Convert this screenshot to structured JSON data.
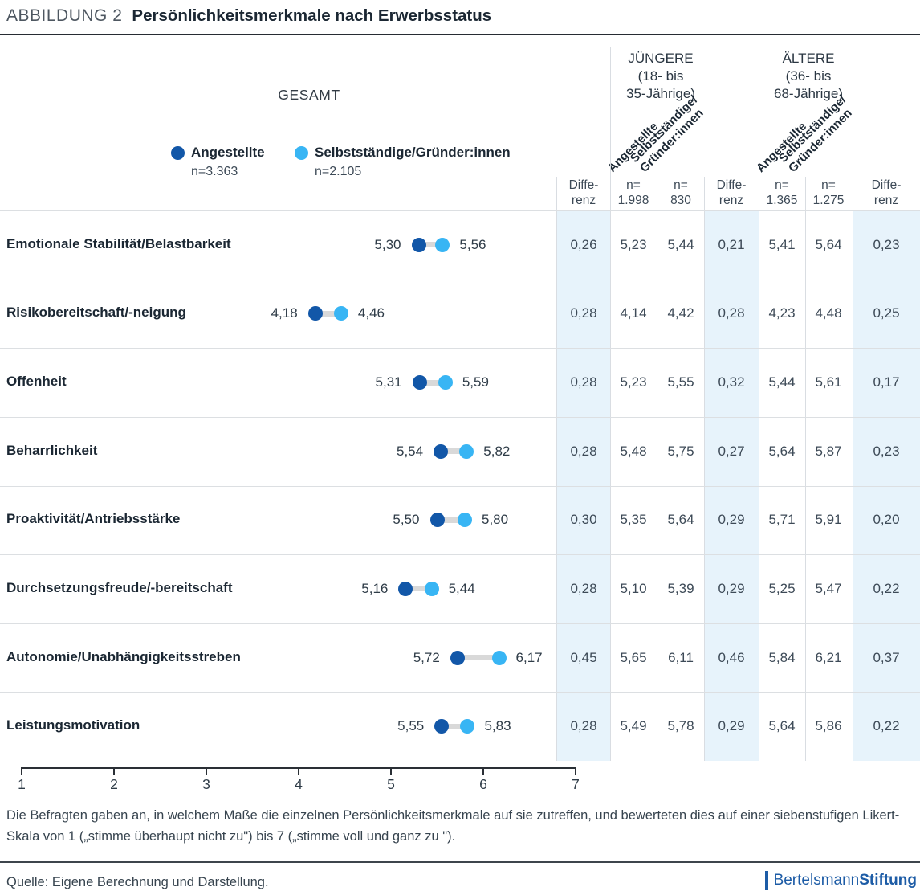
{
  "header": {
    "figure_label": "ABBILDUNG 2",
    "title": "Persönlichkeitsmerkmale nach Erwerbsstatus"
  },
  "colors": {
    "angestellte_dot": "#1257a8",
    "selbststaendige_dot": "#38b5f4",
    "diff_column_bg": "#e7f3fb",
    "connector": "#d9d9d9",
    "grid_line": "#d9dde2",
    "logo_blue": "#1d5ca6"
  },
  "legend": {
    "gesamt_label": "GESAMT",
    "series": [
      {
        "name": "Angestellte",
        "n_label": "n=3.363"
      },
      {
        "name": "Selbstständige/Gründer:innen",
        "n_label": "n=2.105"
      }
    ]
  },
  "table": {
    "diff_header_lines": [
      "Diffe-",
      "renz"
    ],
    "rotated_headers": {
      "angestellte": "Angestellte",
      "selbststaendige_line1": "Selbstständige/",
      "selbststaendige_line2": "Gründer:innen"
    },
    "groups": [
      {
        "name": "JÜNGERE",
        "age_lines": [
          "(18- bis",
          "35-Jährige)"
        ],
        "n_labels": [
          {
            "prefix": "n=",
            "value": "1.998"
          },
          {
            "prefix": "n=",
            "value": "830"
          }
        ]
      },
      {
        "name": "ÄLTERE",
        "age_lines": [
          "(36- bis",
          "68-Jährige)"
        ],
        "n_labels": [
          {
            "prefix": "n=",
            "value": "1.365"
          },
          {
            "prefix": "n=",
            "value": "1.275"
          }
        ]
      }
    ]
  },
  "chart_data": {
    "type": "dumbbell",
    "series_names": [
      "Angestellte",
      "Selbstständige/Gründer:innen"
    ],
    "axis": {
      "min": 1,
      "max": 7,
      "ticks": [
        1,
        2,
        3,
        4,
        5,
        6,
        7
      ]
    },
    "rows": [
      {
        "label": "Emotionale Stabilität/Belastbarkeit",
        "gesamt": {
          "angestellte": 5.3,
          "selbststaendige": 5.56,
          "differenz": 0.26
        },
        "juengere": {
          "angestellte": 5.23,
          "selbststaendige": 5.44,
          "differenz": 0.21
        },
        "aeltere": {
          "angestellte": 5.41,
          "selbststaendige": 5.64,
          "differenz": 0.23
        }
      },
      {
        "label": "Risikobereitschaft/-neigung",
        "gesamt": {
          "angestellte": 4.18,
          "selbststaendige": 4.46,
          "differenz": 0.28
        },
        "juengere": {
          "angestellte": 4.14,
          "selbststaendige": 4.42,
          "differenz": 0.28
        },
        "aeltere": {
          "angestellte": 4.23,
          "selbststaendige": 4.48,
          "differenz": 0.25
        }
      },
      {
        "label": "Offenheit",
        "gesamt": {
          "angestellte": 5.31,
          "selbststaendige": 5.59,
          "differenz": 0.28
        },
        "juengere": {
          "angestellte": 5.23,
          "selbststaendige": 5.55,
          "differenz": 0.32
        },
        "aeltere": {
          "angestellte": 5.44,
          "selbststaendige": 5.61,
          "differenz": 0.17
        }
      },
      {
        "label": "Beharrlichkeit",
        "gesamt": {
          "angestellte": 5.54,
          "selbststaendige": 5.82,
          "differenz": 0.28
        },
        "juengere": {
          "angestellte": 5.48,
          "selbststaendige": 5.75,
          "differenz": 0.27
        },
        "aeltere": {
          "angestellte": 5.64,
          "selbststaendige": 5.87,
          "differenz": 0.23
        }
      },
      {
        "label": "Proaktivität/Antriebsstärke",
        "gesamt": {
          "angestellte": 5.5,
          "selbststaendige": 5.8,
          "differenz": 0.3
        },
        "juengere": {
          "angestellte": 5.35,
          "selbststaendige": 5.64,
          "differenz": 0.29
        },
        "aeltere": {
          "angestellte": 5.71,
          "selbststaendige": 5.91,
          "differenz": 0.2
        }
      },
      {
        "label": "Durchsetzungsfreude/-bereitschaft",
        "gesamt": {
          "angestellte": 5.16,
          "selbststaendige": 5.44,
          "differenz": 0.28
        },
        "juengere": {
          "angestellte": 5.1,
          "selbststaendige": 5.39,
          "differenz": 0.29
        },
        "aeltere": {
          "angestellte": 5.25,
          "selbststaendige": 5.47,
          "differenz": 0.22
        }
      },
      {
        "label": "Autonomie/Unabhängigkeitsstreben",
        "gesamt": {
          "angestellte": 5.72,
          "selbststaendige": 6.17,
          "differenz": 0.45
        },
        "juengere": {
          "angestellte": 5.65,
          "selbststaendige": 6.11,
          "differenz": 0.46
        },
        "aeltere": {
          "angestellte": 5.84,
          "selbststaendige": 6.21,
          "differenz": 0.37
        }
      },
      {
        "label": "Leistungsmotivation",
        "gesamt": {
          "angestellte": 5.55,
          "selbststaendige": 5.83,
          "differenz": 0.28
        },
        "juengere": {
          "angestellte": 5.49,
          "selbststaendige": 5.78,
          "differenz": 0.29
        },
        "aeltere": {
          "angestellte": 5.64,
          "selbststaendige": 5.86,
          "differenz": 0.22
        }
      }
    ]
  },
  "footnote": "Die Befragten gaben an, in welchem Maße die einzelnen Persönlichkeitsmerkmale auf sie zutreffen, und bewerteten dies auf einer siebenstufigen Likert-Skala von 1 („stimme überhaupt nicht zu\") bis 7 („stimme voll und ganz zu \").",
  "source": "Quelle: Eigene Berechnung und Darstellung.",
  "logo": {
    "part1": "Bertelsmann",
    "part2": "Stiftung"
  }
}
